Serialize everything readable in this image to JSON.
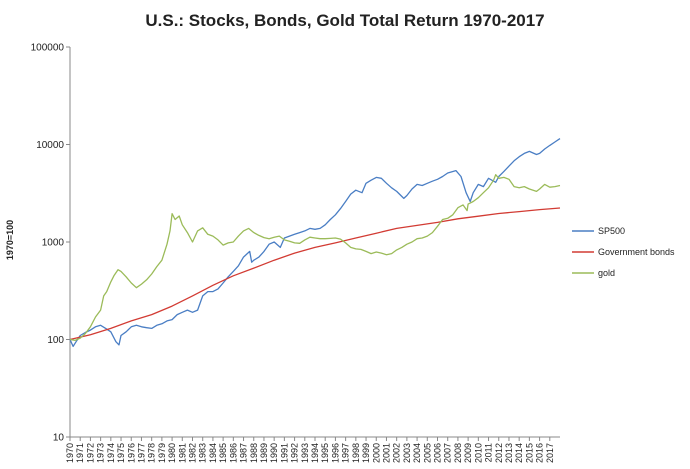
{
  "chart_data": {
    "type": "line",
    "title": "U.S.: Stocks, Bonds, Gold Total Return 1970-2017",
    "ylabel": "1970=100",
    "xlabel": "",
    "y_scale": "log",
    "ylim": [
      10,
      100000
    ],
    "xlim": [
      1970,
      2018
    ],
    "y_ticks": [
      10,
      100,
      1000,
      10000,
      100000
    ],
    "y_tick_labels": [
      "10",
      "100",
      "1000",
      "10000",
      "100000"
    ],
    "x_ticks": [
      1970,
      1971,
      1972,
      1973,
      1974,
      1975,
      1976,
      1977,
      1978,
      1979,
      1980,
      1981,
      1982,
      1983,
      1984,
      1985,
      1986,
      1987,
      1988,
      1989,
      1990,
      1991,
      1992,
      1993,
      1994,
      1995,
      1996,
      1997,
      1998,
      1999,
      2000,
      2001,
      2002,
      2003,
      2004,
      2005,
      2006,
      2007,
      2008,
      2009,
      2010,
      2011,
      2012,
      2013,
      2014,
      2015,
      2016,
      2017
    ],
    "grid": false,
    "legend_position": "right",
    "series": [
      {
        "name": "SP500",
        "color": "#4a7ec4",
        "points": [
          [
            1970,
            100
          ],
          [
            1970.3,
            85
          ],
          [
            1970.6,
            95
          ],
          [
            1971,
            110
          ],
          [
            1971.5,
            118
          ],
          [
            1972,
            125
          ],
          [
            1972.5,
            135
          ],
          [
            1973,
            140
          ],
          [
            1973.5,
            130
          ],
          [
            1974,
            120
          ],
          [
            1974.5,
            95
          ],
          [
            1974.8,
            88
          ],
          [
            1975,
            110
          ],
          [
            1975.5,
            120
          ],
          [
            1976,
            135
          ],
          [
            1976.5,
            140
          ],
          [
            1977,
            135
          ],
          [
            1977.5,
            132
          ],
          [
            1978,
            130
          ],
          [
            1978.5,
            140
          ],
          [
            1979,
            145
          ],
          [
            1979.5,
            155
          ],
          [
            1980,
            160
          ],
          [
            1980.5,
            180
          ],
          [
            1981,
            190
          ],
          [
            1981.5,
            200
          ],
          [
            1982,
            190
          ],
          [
            1982.5,
            200
          ],
          [
            1983,
            280
          ],
          [
            1983.5,
            310
          ],
          [
            1984,
            310
          ],
          [
            1984.5,
            330
          ],
          [
            1985,
            380
          ],
          [
            1985.5,
            440
          ],
          [
            1986,
            500
          ],
          [
            1986.5,
            570
          ],
          [
            1987,
            700
          ],
          [
            1987.6,
            800
          ],
          [
            1987.8,
            620
          ],
          [
            1988,
            650
          ],
          [
            1988.5,
            700
          ],
          [
            1989,
            800
          ],
          [
            1989.5,
            950
          ],
          [
            1990,
            1000
          ],
          [
            1990.6,
            880
          ],
          [
            1991,
            1100
          ],
          [
            1991.5,
            1150
          ],
          [
            1992,
            1200
          ],
          [
            1992.5,
            1250
          ],
          [
            1993,
            1300
          ],
          [
            1993.5,
            1380
          ],
          [
            1994,
            1350
          ],
          [
            1994.5,
            1380
          ],
          [
            1995,
            1500
          ],
          [
            1995.5,
            1700
          ],
          [
            1996,
            1900
          ],
          [
            1996.5,
            2200
          ],
          [
            1997,
            2600
          ],
          [
            1997.5,
            3100
          ],
          [
            1998,
            3400
          ],
          [
            1998.6,
            3200
          ],
          [
            1999,
            4000
          ],
          [
            1999.5,
            4300
          ],
          [
            2000,
            4600
          ],
          [
            2000.5,
            4500
          ],
          [
            2001,
            4000
          ],
          [
            2001.5,
            3600
          ],
          [
            2002,
            3300
          ],
          [
            2002.7,
            2800
          ],
          [
            2003,
            3000
          ],
          [
            2003.5,
            3500
          ],
          [
            2004,
            3900
          ],
          [
            2004.5,
            3800
          ],
          [
            2005,
            4000
          ],
          [
            2005.5,
            4200
          ],
          [
            2006,
            4400
          ],
          [
            2006.5,
            4700
          ],
          [
            2007,
            5100
          ],
          [
            2007.8,
            5400
          ],
          [
            2008.3,
            4700
          ],
          [
            2008.8,
            3200
          ],
          [
            2009.2,
            2600
          ],
          [
            2009.5,
            3200
          ],
          [
            2010,
            3900
          ],
          [
            2010.5,
            3700
          ],
          [
            2011,
            4500
          ],
          [
            2011.7,
            4100
          ],
          [
            2012,
            4700
          ],
          [
            2012.5,
            5300
          ],
          [
            2013,
            6000
          ],
          [
            2013.5,
            6800
          ],
          [
            2014,
            7500
          ],
          [
            2014.5,
            8100
          ],
          [
            2015,
            8500
          ],
          [
            2015.7,
            7900
          ],
          [
            2016,
            8100
          ],
          [
            2016.5,
            9000
          ],
          [
            2017,
            9800
          ],
          [
            2017.5,
            10600
          ],
          [
            2018,
            11500
          ]
        ]
      },
      {
        "name": "Government bonds",
        "color": "#d23b33",
        "points": [
          [
            1970,
            100
          ],
          [
            1972,
            112
          ],
          [
            1974,
            130
          ],
          [
            1976,
            155
          ],
          [
            1978,
            180
          ],
          [
            1980,
            220
          ],
          [
            1982,
            280
          ],
          [
            1984,
            360
          ],
          [
            1986,
            450
          ],
          [
            1988,
            540
          ],
          [
            1990,
            650
          ],
          [
            1992,
            770
          ],
          [
            1994,
            880
          ],
          [
            1996,
            980
          ],
          [
            1998,
            1100
          ],
          [
            2000,
            1230
          ],
          [
            2002,
            1380
          ],
          [
            2004,
            1480
          ],
          [
            2006,
            1590
          ],
          [
            2008,
            1730
          ],
          [
            2010,
            1840
          ],
          [
            2012,
            1960
          ],
          [
            2014,
            2050
          ],
          [
            2016,
            2150
          ],
          [
            2018,
            2230
          ]
        ]
      },
      {
        "name": "gold",
        "color": "#9bbb59",
        "points": [
          [
            1970,
            100
          ],
          [
            1970.5,
            98
          ],
          [
            1971,
            103
          ],
          [
            1971.5,
            115
          ],
          [
            1972,
            135
          ],
          [
            1972.5,
            170
          ],
          [
            1973,
            200
          ],
          [
            1973.3,
            280
          ],
          [
            1973.6,
            310
          ],
          [
            1974,
            390
          ],
          [
            1974.3,
            450
          ],
          [
            1974.7,
            520
          ],
          [
            1975,
            500
          ],
          [
            1975.5,
            440
          ],
          [
            1976,
            380
          ],
          [
            1976.5,
            340
          ],
          [
            1977,
            370
          ],
          [
            1977.5,
            410
          ],
          [
            1978,
            470
          ],
          [
            1978.5,
            560
          ],
          [
            1979,
            650
          ],
          [
            1979.5,
            950
          ],
          [
            1979.8,
            1300
          ],
          [
            1980,
            1950
          ],
          [
            1980.3,
            1700
          ],
          [
            1980.7,
            1850
          ],
          [
            1981,
            1500
          ],
          [
            1981.5,
            1250
          ],
          [
            1982,
            1000
          ],
          [
            1982.5,
            1300
          ],
          [
            1983,
            1400
          ],
          [
            1983.5,
            1200
          ],
          [
            1984,
            1150
          ],
          [
            1984.5,
            1050
          ],
          [
            1985,
            930
          ],
          [
            1985.5,
            980
          ],
          [
            1986,
            1000
          ],
          [
            1986.5,
            1150
          ],
          [
            1987,
            1300
          ],
          [
            1987.5,
            1380
          ],
          [
            1988,
            1250
          ],
          [
            1988.5,
            1170
          ],
          [
            1989,
            1110
          ],
          [
            1989.5,
            1080
          ],
          [
            1990,
            1120
          ],
          [
            1990.5,
            1150
          ],
          [
            1991,
            1050
          ],
          [
            1991.5,
            1020
          ],
          [
            1992,
            980
          ],
          [
            1992.5,
            970
          ],
          [
            1993,
            1050
          ],
          [
            1993.5,
            1120
          ],
          [
            1994,
            1100
          ],
          [
            1994.5,
            1080
          ],
          [
            1995,
            1080
          ],
          [
            1995.5,
            1090
          ],
          [
            1996,
            1100
          ],
          [
            1996.5,
            1070
          ],
          [
            1997,
            980
          ],
          [
            1997.5,
            880
          ],
          [
            1998,
            850
          ],
          [
            1998.5,
            840
          ],
          [
            1999,
            800
          ],
          [
            1999.5,
            760
          ],
          [
            2000,
            790
          ],
          [
            2000.5,
            770
          ],
          [
            2001,
            740
          ],
          [
            2001.5,
            760
          ],
          [
            2002,
            830
          ],
          [
            2002.5,
            880
          ],
          [
            2003,
            950
          ],
          [
            2003.5,
            1000
          ],
          [
            2004,
            1080
          ],
          [
            2004.5,
            1100
          ],
          [
            2005,
            1150
          ],
          [
            2005.5,
            1250
          ],
          [
            2006,
            1450
          ],
          [
            2006.5,
            1700
          ],
          [
            2007,
            1750
          ],
          [
            2007.5,
            1900
          ],
          [
            2008,
            2250
          ],
          [
            2008.5,
            2400
          ],
          [
            2008.9,
            2100
          ],
          [
            2009,
            2450
          ],
          [
            2009.5,
            2600
          ],
          [
            2010,
            2850
          ],
          [
            2010.5,
            3200
          ],
          [
            2011,
            3600
          ],
          [
            2011.5,
            4300
          ],
          [
            2011.7,
            4900
          ],
          [
            2012,
            4500
          ],
          [
            2012.5,
            4600
          ],
          [
            2013,
            4400
          ],
          [
            2013.5,
            3700
          ],
          [
            2014,
            3600
          ],
          [
            2014.5,
            3700
          ],
          [
            2015,
            3500
          ],
          [
            2015.7,
            3300
          ],
          [
            2016,
            3500
          ],
          [
            2016.5,
            3900
          ],
          [
            2017,
            3650
          ],
          [
            2017.5,
            3700
          ],
          [
            2018,
            3800
          ]
        ]
      }
    ]
  }
}
